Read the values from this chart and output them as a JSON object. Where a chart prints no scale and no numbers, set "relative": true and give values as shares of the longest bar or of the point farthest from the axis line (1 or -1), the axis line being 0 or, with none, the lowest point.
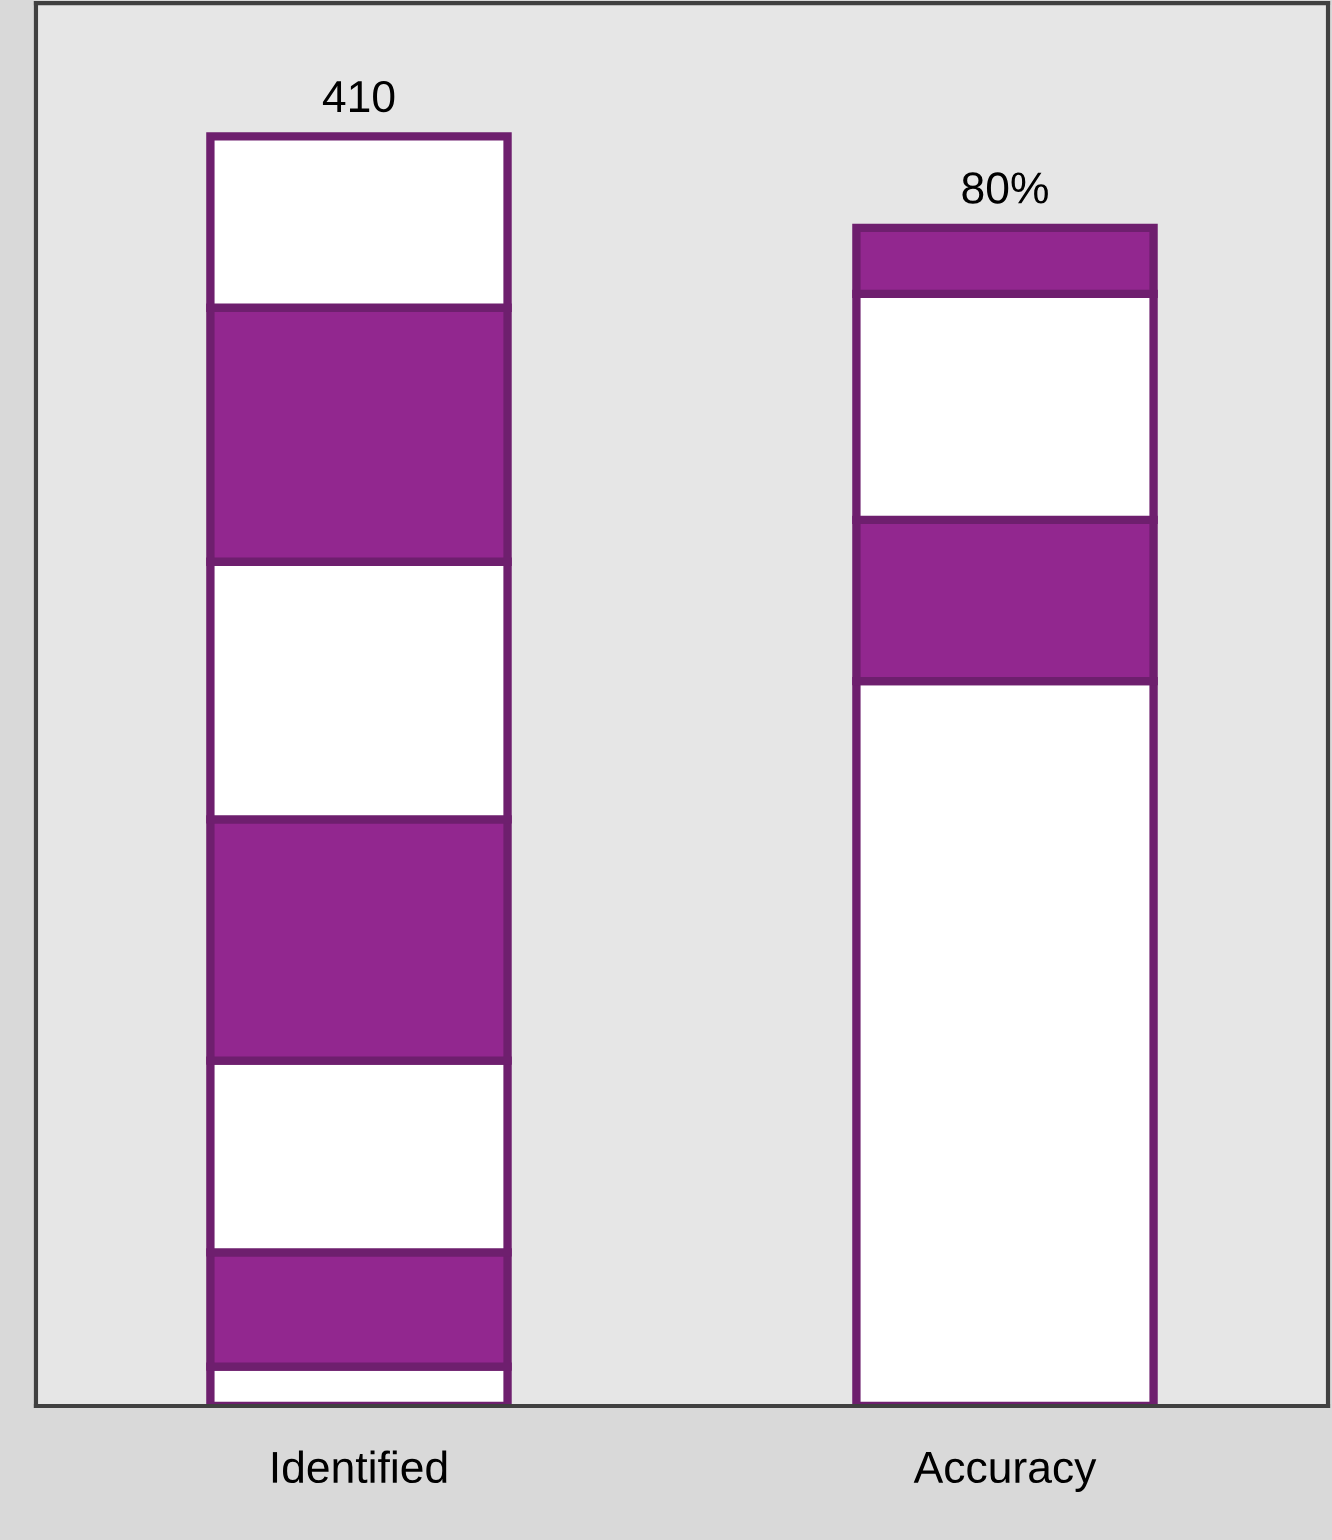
{
  "chart_data": {
    "type": "bar",
    "relative": true,
    "stacked": true,
    "categories": [
      "Identified",
      "Accuracy"
    ],
    "series": [
      {
        "color": "#ffffff",
        "values": [
          0.031,
          0.571
        ]
      },
      {
        "color": "#92278f",
        "values": [
          0.09,
          0.127
        ]
      },
      {
        "color": "#ffffff",
        "values": [
          0.151,
          0.178
        ]
      },
      {
        "color": "#92278f",
        "values": [
          0.19,
          0.052
        ]
      },
      {
        "color": "#ffffff",
        "values": [
          0.203,
          null
        ]
      },
      {
        "color": "#92278f",
        "values": [
          0.2,
          null
        ]
      },
      {
        "color": "#ffffff",
        "values": [
          0.135,
          null
        ]
      }
    ],
    "annotations": [
      {
        "text": "410",
        "x": "Identified",
        "y": 1.0
      },
      {
        "text": "80%",
        "x": "Accuracy",
        "y": 0.928
      }
    ],
    "grid": false,
    "legend": false
  }
}
